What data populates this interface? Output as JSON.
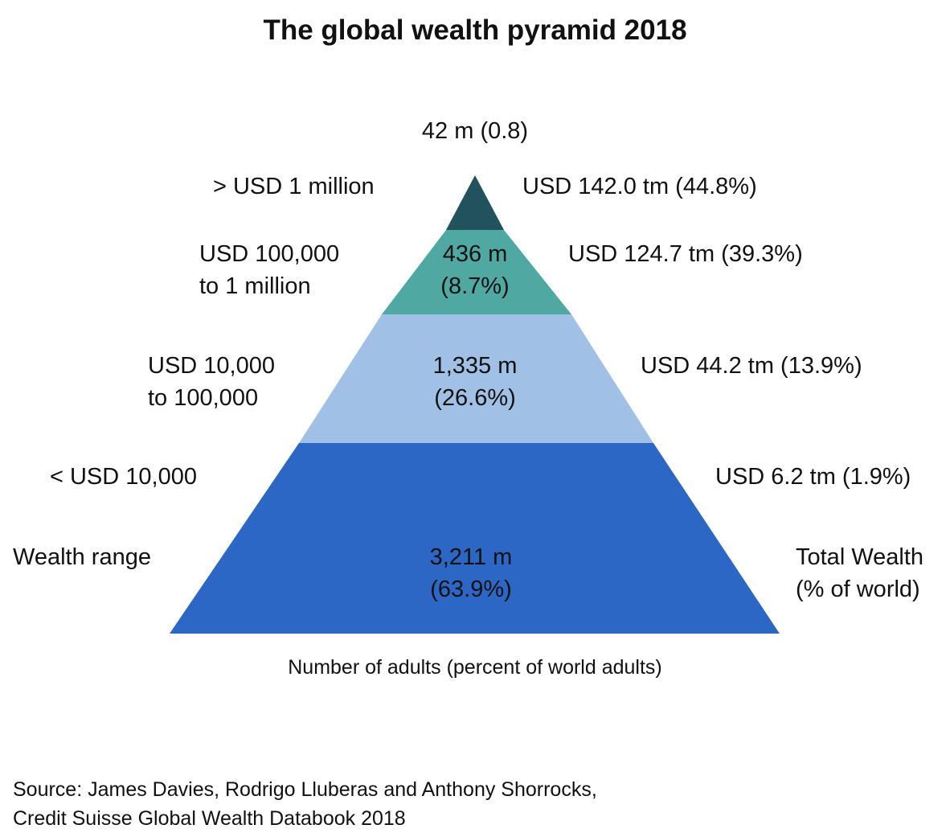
{
  "title": "The global wealth pyramid 2018",
  "top_adults_label": "42 m (0.8)",
  "tiers": [
    {
      "wealth_range": [
        "> USD 1 million"
      ],
      "adults": [],
      "total_wealth": "USD 142.0 tm (44.8%)",
      "color": "#22525e"
    },
    {
      "wealth_range": [
        "USD 100,000",
        "to 1 million"
      ],
      "adults": [
        "436 m",
        "(8.7%)"
      ],
      "total_wealth": "USD 124.7 tm (39.3%)",
      "color": "#4fa9a2"
    },
    {
      "wealth_range": [
        "USD 10,000",
        "to 100,000"
      ],
      "adults": [
        "1,335 m",
        "(26.6%)"
      ],
      "total_wealth": "USD 44.2 tm (13.9%)",
      "color": "#a1c0e6"
    },
    {
      "wealth_range": [
        "< USD 10,000"
      ],
      "adults": [
        "3,211 m",
        "(63.9%)"
      ],
      "total_wealth": "USD 6.2 tm (1.9%)",
      "color": "#2c67c6"
    }
  ],
  "left_header": "Wealth range",
  "right_header": [
    "Total Wealth",
    "(% of world)"
  ],
  "axis_label": "Number of adults (percent of world adults)",
  "source": [
    "Source: James Davies, Rodrigo Lluberas and Anthony Shorrocks,",
    "Credit Suisse Global Wealth Databook 2018"
  ]
}
